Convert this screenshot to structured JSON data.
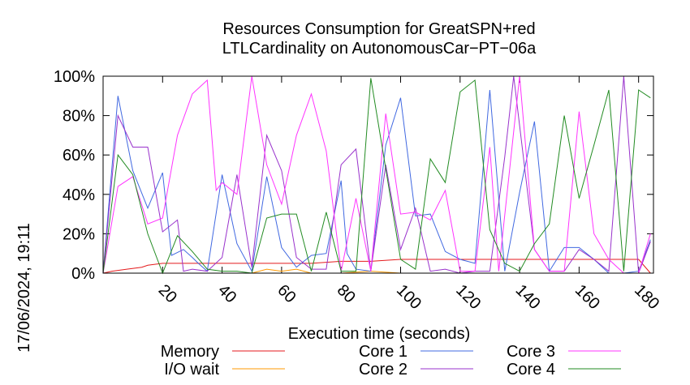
{
  "chart_data": {
    "type": "line",
    "title": "Resources Consumption for GreatSPN+red",
    "subtitle": "LTLCardinality on AutonomousCar−PT−06a",
    "xlabel": "Execution time (seconds)",
    "ylabel": "",
    "side_label": "17/06/2024, 19:11",
    "xlim": [
      0,
      185
    ],
    "ylim": [
      0,
      100
    ],
    "x_ticks": [
      20,
      40,
      60,
      80,
      100,
      120,
      140,
      160,
      180
    ],
    "y_ticks": [
      0,
      20,
      40,
      60,
      80,
      100
    ],
    "y_tick_labels": [
      "0%",
      "20%",
      "40%",
      "60%",
      "80%",
      "100%"
    ],
    "grid": false,
    "legend_position": "bottom",
    "series": [
      {
        "name": "Memory",
        "color": "#e41a1c",
        "points": [
          [
            0,
            0
          ],
          [
            3,
            1
          ],
          [
            8,
            2
          ],
          [
            13,
            3
          ],
          [
            15,
            4
          ],
          [
            20,
            5
          ],
          [
            30,
            5
          ],
          [
            40,
            5
          ],
          [
            50,
            5
          ],
          [
            60,
            5
          ],
          [
            70,
            5
          ],
          [
            80,
            6
          ],
          [
            90,
            6
          ],
          [
            100,
            7
          ],
          [
            110,
            7
          ],
          [
            120,
            7
          ],
          [
            130,
            7
          ],
          [
            140,
            7
          ],
          [
            150,
            7
          ],
          [
            160,
            7
          ],
          [
            170,
            7
          ],
          [
            176,
            7
          ],
          [
            180,
            7
          ],
          [
            184,
            0
          ]
        ]
      },
      {
        "name": "I/O wait",
        "color": "#ff9900",
        "points": [
          [
            0,
            0
          ],
          [
            20,
            0
          ],
          [
            30,
            0
          ],
          [
            40,
            0
          ],
          [
            50,
            0
          ],
          [
            55,
            2
          ],
          [
            60,
            1
          ],
          [
            65,
            2
          ],
          [
            70,
            0
          ],
          [
            80,
            0
          ],
          [
            90,
            1
          ],
          [
            100,
            0
          ],
          [
            120,
            0
          ],
          [
            140,
            0
          ],
          [
            160,
            0
          ],
          [
            180,
            0
          ],
          [
            184,
            0
          ]
        ]
      },
      {
        "name": "Core 1",
        "color": "#4169e1",
        "points": [
          [
            0,
            0
          ],
          [
            5,
            90
          ],
          [
            10,
            52
          ],
          [
            15,
            33
          ],
          [
            20,
            51
          ],
          [
            23,
            9
          ],
          [
            27,
            12
          ],
          [
            30,
            8
          ],
          [
            32,
            5
          ],
          [
            35,
            1
          ],
          [
            40,
            50
          ],
          [
            45,
            15
          ],
          [
            50,
            1
          ],
          [
            55,
            49
          ],
          [
            60,
            13
          ],
          [
            65,
            3
          ],
          [
            70,
            9
          ],
          [
            75,
            10
          ],
          [
            80,
            47
          ],
          [
            82,
            10
          ],
          [
            85,
            2
          ],
          [
            90,
            1
          ],
          [
            95,
            65
          ],
          [
            100,
            89
          ],
          [
            105,
            29
          ],
          [
            110,
            30
          ],
          [
            115,
            11
          ],
          [
            120,
            7
          ],
          [
            125,
            5
          ],
          [
            130,
            93
          ],
          [
            135,
            1
          ],
          [
            140,
            41
          ],
          [
            145,
            77
          ],
          [
            150,
            1
          ],
          [
            155,
            13
          ],
          [
            160,
            13
          ],
          [
            165,
            7
          ],
          [
            170,
            0
          ],
          [
            175,
            0
          ],
          [
            180,
            1
          ],
          [
            184,
            17
          ]
        ]
      },
      {
        "name": "Core 2",
        "color": "#9932cc",
        "points": [
          [
            0,
            0
          ],
          [
            5,
            80
          ],
          [
            10,
            64
          ],
          [
            15,
            64
          ],
          [
            20,
            21
          ],
          [
            25,
            27
          ],
          [
            27,
            1
          ],
          [
            30,
            2
          ],
          [
            35,
            1
          ],
          [
            40,
            8
          ],
          [
            45,
            50
          ],
          [
            50,
            3
          ],
          [
            55,
            70
          ],
          [
            60,
            52
          ],
          [
            65,
            8
          ],
          [
            70,
            2
          ],
          [
            75,
            2
          ],
          [
            80,
            55
          ],
          [
            85,
            63
          ],
          [
            90,
            1
          ],
          [
            95,
            55
          ],
          [
            100,
            12
          ],
          [
            105,
            33
          ],
          [
            110,
            1
          ],
          [
            115,
            2
          ],
          [
            120,
            0
          ],
          [
            125,
            1
          ],
          [
            130,
            1
          ],
          [
            135,
            59
          ],
          [
            138,
            100
          ],
          [
            145,
            12
          ],
          [
            150,
            1
          ],
          [
            155,
            1
          ],
          [
            160,
            12
          ],
          [
            165,
            7
          ],
          [
            170,
            1
          ],
          [
            175,
            100
          ],
          [
            180,
            0
          ],
          [
            184,
            16
          ]
        ]
      },
      {
        "name": "Core 3",
        "color": "#ff33ff",
        "points": [
          [
            0,
            0
          ],
          [
            5,
            44
          ],
          [
            10,
            49
          ],
          [
            15,
            25
          ],
          [
            20,
            28
          ],
          [
            25,
            70
          ],
          [
            30,
            91
          ],
          [
            35,
            98
          ],
          [
            38,
            42
          ],
          [
            40,
            46
          ],
          [
            45,
            40
          ],
          [
            50,
            100
          ],
          [
            55,
            55
          ],
          [
            60,
            35
          ],
          [
            65,
            70
          ],
          [
            70,
            91
          ],
          [
            75,
            62
          ],
          [
            80,
            1
          ],
          [
            85,
            38
          ],
          [
            90,
            1
          ],
          [
            95,
            81
          ],
          [
            100,
            30
          ],
          [
            105,
            31
          ],
          [
            110,
            27
          ],
          [
            115,
            42
          ],
          [
            120,
            1
          ],
          [
            125,
            1
          ],
          [
            130,
            64
          ],
          [
            133,
            1
          ],
          [
            140,
            100
          ],
          [
            145,
            12
          ],
          [
            150,
            1
          ],
          [
            155,
            1
          ],
          [
            160,
            82
          ],
          [
            165,
            20
          ],
          [
            170,
            7
          ],
          [
            175,
            0
          ],
          [
            180,
            0
          ],
          [
            184,
            20
          ]
        ]
      },
      {
        "name": "Core 4",
        "color": "#228b22",
        "points": [
          [
            0,
            0
          ],
          [
            5,
            60
          ],
          [
            10,
            50
          ],
          [
            15,
            20
          ],
          [
            20,
            0
          ],
          [
            25,
            19
          ],
          [
            30,
            11
          ],
          [
            35,
            2
          ],
          [
            40,
            1
          ],
          [
            45,
            1
          ],
          [
            50,
            0
          ],
          [
            55,
            28
          ],
          [
            60,
            30
          ],
          [
            65,
            30
          ],
          [
            70,
            1
          ],
          [
            75,
            31
          ],
          [
            80,
            1
          ],
          [
            85,
            1
          ],
          [
            90,
            99
          ],
          [
            95,
            53
          ],
          [
            100,
            7
          ],
          [
            105,
            2
          ],
          [
            110,
            58
          ],
          [
            115,
            46
          ],
          [
            120,
            92
          ],
          [
            125,
            98
          ],
          [
            130,
            22
          ],
          [
            135,
            5
          ],
          [
            140,
            1
          ],
          [
            145,
            15
          ],
          [
            150,
            25
          ],
          [
            155,
            80
          ],
          [
            160,
            38
          ],
          [
            165,
            65
          ],
          [
            170,
            93
          ],
          [
            175,
            1
          ],
          [
            180,
            93
          ],
          [
            184,
            89
          ]
        ]
      }
    ]
  }
}
